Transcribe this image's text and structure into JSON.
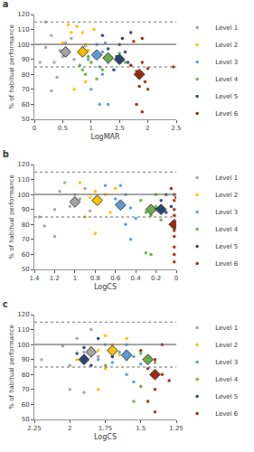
{
  "chart_data": [
    {
      "type": "scatter",
      "title": "a",
      "x_label": "LogMAR",
      "y_label": "% of habitual performance",
      "xlim": [
        0,
        2.5
      ],
      "xticks": [
        0,
        0.5,
        1,
        1.5,
        2,
        2.5
      ],
      "ylim": [
        50,
        120
      ],
      "yticks": [
        50,
        60,
        70,
        80,
        90,
        100,
        110,
        120
      ],
      "grid": false,
      "legend": "right",
      "marker": "circle",
      "reference_lines": [
        {
          "y": 100,
          "line_style": "solid"
        },
        {
          "y": 85,
          "line_style": "dotted"
        },
        {
          "y": 115,
          "line_style": "dotted"
        }
      ],
      "series": [
        {
          "name": "Level 1",
          "color": "#a5a5a5",
          "x": [
            0.1,
            0.2,
            0.2,
            0.3,
            0.35,
            0.4,
            0.45,
            0.5,
            0.55,
            0.65,
            0.7,
            0.3,
            0.8,
            0.9
          ],
          "values": [
            88,
            98,
            115,
            106,
            88,
            78,
            96,
            92,
            101,
            104,
            90,
            69,
            95,
            99
          ],
          "mean": {
            "x": 0.55,
            "y": 95
          }
        },
        {
          "name": "Level 2",
          "color": "#ffc000",
          "x": [
            0.5,
            0.6,
            0.65,
            0.75,
            0.85,
            0.8,
            0.9,
            0.95,
            1.0,
            0.7,
            0.9,
            1.05
          ],
          "values": [
            101,
            113,
            108,
            112,
            108,
            94,
            100,
            96,
            88,
            70,
            75,
            110
          ],
          "mean": {
            "x": 0.85,
            "y": 95
          }
        },
        {
          "name": "Level 3",
          "color": "#5b9bd5",
          "x": [
            0.85,
            0.95,
            1.1,
            1.15,
            1.2,
            1.2,
            1.25,
            1.3,
            1.0,
            1.15,
            1.3
          ],
          "values": [
            98,
            90,
            100,
            85,
            80,
            95,
            101,
            88,
            70,
            60,
            60
          ],
          "mean": {
            "x": 1.1,
            "y": 93
          }
        },
        {
          "name": "Level 4",
          "color": "#70ad47",
          "x": [
            0.8,
            0.85,
            0.9,
            1.0,
            1.1,
            1.2,
            1.35,
            1.5,
            1.6,
            0.95
          ],
          "values": [
            86,
            83,
            80,
            88,
            77,
            83,
            90,
            94,
            88,
            92
          ],
          "mean": {
            "x": 1.3,
            "y": 91
          }
        },
        {
          "name": "Level 5",
          "color": "#264478",
          "x": [
            1.2,
            1.3,
            1.45,
            1.5,
            1.55,
            1.6,
            1.65,
            1.7,
            1.4
          ],
          "values": [
            106,
            97,
            92,
            100,
            104,
            95,
            88,
            108,
            83
          ],
          "mean": {
            "x": 1.5,
            "y": 90
          }
        },
        {
          "name": "Level 6",
          "color": "#9e2a0e",
          "x": [
            1.7,
            1.75,
            1.8,
            1.85,
            1.85,
            1.9,
            1.9,
            1.95,
            2.0,
            2.0,
            1.8,
            1.9,
            2.45
          ],
          "values": [
            86,
            102,
            82,
            80,
            72,
            104,
            88,
            75,
            70,
            84,
            60,
            55,
            85
          ],
          "mean": {
            "x": 1.85,
            "y": 80
          }
        }
      ]
    },
    {
      "type": "scatter",
      "title": "b",
      "x_label": "LogCS",
      "y_label": "% of habitual performance",
      "xlim": [
        1.4,
        0
      ],
      "xticks": [
        1.4,
        1.2,
        1,
        0.8,
        0.6,
        0.4,
        0.2,
        0
      ],
      "ylim": [
        50,
        120
      ],
      "yticks": [
        50,
        60,
        70,
        80,
        90,
        100,
        110,
        120
      ],
      "grid": false,
      "legend": "right",
      "marker": "circle",
      "reference_lines": [
        {
          "y": 100,
          "line_style": "solid"
        },
        {
          "y": 85,
          "line_style": "dotted"
        },
        {
          "y": 115,
          "line_style": "dotted"
        }
      ],
      "series": [
        {
          "name": "Level 1",
          "color": "#a5a5a5",
          "x": [
            1.35,
            1.3,
            1.2,
            1.15,
            1.1,
            1.05,
            1.0,
            0.95,
            0.9,
            1.2,
            0.85
          ],
          "values": [
            85,
            79,
            90,
            102,
            108,
            92,
            100,
            97,
            104,
            72,
            89
          ],
          "mean": {
            "x": 1.0,
            "y": 95
          }
        },
        {
          "name": "Level 2",
          "color": "#ffc000",
          "x": [
            0.95,
            0.85,
            0.8,
            0.75,
            0.7,
            0.65,
            0.8,
            0.6,
            0.9
          ],
          "values": [
            108,
            98,
            102,
            96,
            100,
            88,
            74,
            104,
            85
          ],
          "mean": {
            "x": 0.78,
            "y": 96
          }
        },
        {
          "name": "Level 3",
          "color": "#5b9bd5",
          "x": [
            0.7,
            0.6,
            0.55,
            0.5,
            0.45,
            0.4,
            0.5,
            0.45,
            0.55
          ],
          "values": [
            106,
            97,
            93,
            100,
            91,
            84,
            80,
            70,
            106
          ],
          "mean": {
            "x": 0.55,
            "y": 93
          }
        },
        {
          "name": "Level 4",
          "color": "#70ad47",
          "x": [
            0.35,
            0.3,
            0.25,
            0.2,
            0.3,
            0.25,
            0.2,
            0.15
          ],
          "values": [
            96,
            88,
            86,
            92,
            61,
            60,
            100,
            83
          ],
          "mean": {
            "x": 0.25,
            "y": 90
          }
        },
        {
          "name": "Level 5",
          "color": "#264478",
          "x": [
            0.2,
            0.15,
            0.1,
            0.1,
            0.05
          ],
          "values": [
            90,
            96,
            88,
            100,
            92
          ],
          "mean": {
            "x": 0.15,
            "y": 90
          }
        },
        {
          "name": "Level 6",
          "color": "#9e2a0e",
          "x": [
            0.02,
            0.02,
            0.02,
            0.02,
            0.02,
            0.02,
            0.02,
            0.02,
            0.02,
            0.02,
            0.05,
            0.0,
            0.0
          ],
          "values": [
            100,
            96,
            90,
            86,
            82,
            76,
            72,
            65,
            60,
            55,
            104,
            98,
            80
          ],
          "mean": {
            "x": 0.02,
            "y": 80
          }
        }
      ]
    },
    {
      "type": "scatter",
      "title": "c",
      "x_label": "LogCS",
      "y_label": "% of habitual performance",
      "xlim": [
        2.25,
        1.25
      ],
      "xticks": [
        2.25,
        2,
        1.75,
        1.5,
        1.25
      ],
      "ylim": [
        50,
        120
      ],
      "yticks": [
        50,
        60,
        70,
        80,
        90,
        100,
        110,
        120
      ],
      "grid": false,
      "legend": "right",
      "marker": "circle",
      "reference_lines": [
        {
          "y": 100,
          "line_style": "solid"
        },
        {
          "y": 85,
          "line_style": "dotted"
        },
        {
          "y": 115,
          "line_style": "dotted"
        }
      ],
      "series": [
        {
          "name": "Level 1",
          "color": "#a5a5a5",
          "x": [
            2.2,
            2.05,
            2.0,
            1.95,
            1.9,
            1.85,
            1.8,
            1.75,
            2.0,
            1.9
          ],
          "values": [
            90,
            99,
            86,
            104,
            95,
            110,
            92,
            100,
            70,
            68
          ],
          "mean": {
            "x": 1.85,
            "y": 95
          }
        },
        {
          "name": "Level 2",
          "color": "#ffc000",
          "x": [
            1.95,
            1.85,
            1.8,
            1.75,
            1.7,
            1.65,
            1.75,
            1.6,
            1.8
          ],
          "values": [
            90,
            98,
            96,
            106,
            100,
            93,
            84,
            104,
            70
          ],
          "mean": {
            "x": 1.7,
            "y": 96
          }
        },
        {
          "name": "Level 3",
          "color": "#5b9bd5",
          "x": [
            1.8,
            1.7,
            1.65,
            1.6,
            1.55,
            1.6,
            1.55,
            1.5
          ],
          "values": [
            90,
            88,
            95,
            100,
            92,
            80,
            75,
            87
          ],
          "mean": {
            "x": 1.6,
            "y": 93
          }
        },
        {
          "name": "Level 4",
          "color": "#70ad47",
          "x": [
            1.75,
            1.6,
            1.5,
            1.45,
            1.4,
            1.4,
            1.5,
            1.55
          ],
          "values": [
            86,
            90,
            94,
            91,
            88,
            80,
            72,
            62
          ],
          "mean": {
            "x": 1.45,
            "y": 90
          }
        },
        {
          "name": "Level 5",
          "color": "#264478",
          "x": [
            1.95,
            1.9,
            1.85,
            1.8,
            1.7
          ],
          "values": [
            94,
            98,
            86,
            104,
            92
          ],
          "mean": {
            "x": 1.9,
            "y": 90
          }
        },
        {
          "name": "Level 6",
          "color": "#9e2a0e",
          "x": [
            1.5,
            1.45,
            1.4,
            1.35,
            1.4,
            1.3,
            1.35,
            1.45,
            1.4
          ],
          "values": [
            96,
            84,
            90,
            80,
            70,
            76,
            100,
            62,
            55
          ],
          "mean": {
            "x": 1.4,
            "y": 80
          }
        }
      ]
    }
  ]
}
